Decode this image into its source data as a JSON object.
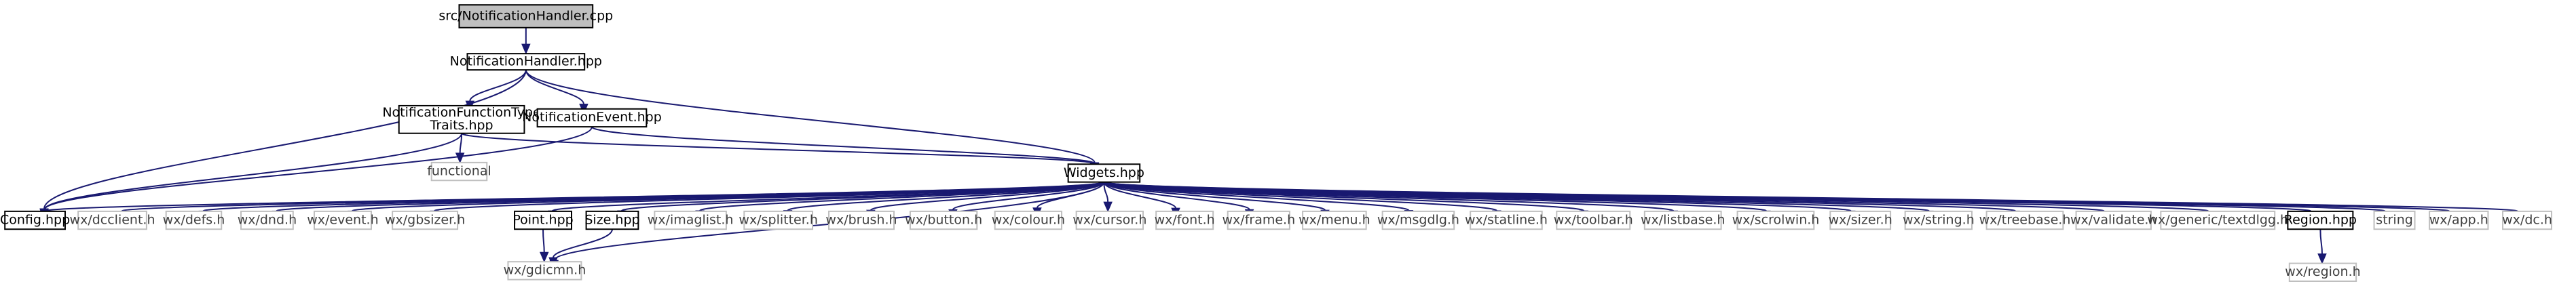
{
  "graph": {
    "edge_color": "#191970",
    "nodes": [
      {
        "id": "root",
        "label": "src/NotificationHandler.cpp",
        "kind": "root"
      },
      {
        "id": "nh",
        "label": "NotificationHandler.hpp",
        "kind": "doc"
      },
      {
        "id": "nftt",
        "label": "NotificationFunctionType",
        "label2": "Traits.hpp",
        "kind": "doc"
      },
      {
        "id": "ne",
        "label": "NotificationEvent.hpp",
        "kind": "doc"
      },
      {
        "id": "functional",
        "label": "functional",
        "kind": "ext"
      },
      {
        "id": "widgets",
        "label": "Widgets.hpp",
        "kind": "doc"
      },
      {
        "id": "config",
        "label": "Config.hpp",
        "kind": "doc"
      },
      {
        "id": "dcclient",
        "label": "wx/dcclient.h",
        "kind": "ext"
      },
      {
        "id": "defs",
        "label": "wx/defs.h",
        "kind": "ext"
      },
      {
        "id": "dnd",
        "label": "wx/dnd.h",
        "kind": "ext"
      },
      {
        "id": "event",
        "label": "wx/event.h",
        "kind": "ext"
      },
      {
        "id": "gbsizer",
        "label": "wx/gbsizer.h",
        "kind": "ext"
      },
      {
        "id": "point",
        "label": "Point.hpp",
        "kind": "doc"
      },
      {
        "id": "size",
        "label": "Size.hpp",
        "kind": "doc"
      },
      {
        "id": "imaglist",
        "label": "wx/imaglist.h",
        "kind": "ext"
      },
      {
        "id": "splitter",
        "label": "wx/splitter.h",
        "kind": "ext"
      },
      {
        "id": "brush",
        "label": "wx/brush.h",
        "kind": "ext"
      },
      {
        "id": "button",
        "label": "wx/button.h",
        "kind": "ext"
      },
      {
        "id": "colour",
        "label": "wx/colour.h",
        "kind": "ext"
      },
      {
        "id": "cursor",
        "label": "wx/cursor.h",
        "kind": "ext"
      },
      {
        "id": "font",
        "label": "wx/font.h",
        "kind": "ext"
      },
      {
        "id": "frame",
        "label": "wx/frame.h",
        "kind": "ext"
      },
      {
        "id": "menu",
        "label": "wx/menu.h",
        "kind": "ext"
      },
      {
        "id": "msgdlg",
        "label": "wx/msgdlg.h",
        "kind": "ext"
      },
      {
        "id": "statline",
        "label": "wx/statline.h",
        "kind": "ext"
      },
      {
        "id": "toolbar",
        "label": "wx/toolbar.h",
        "kind": "ext"
      },
      {
        "id": "listbase",
        "label": "wx/listbase.h",
        "kind": "ext"
      },
      {
        "id": "scrolwin",
        "label": "wx/scrolwin.h",
        "kind": "ext"
      },
      {
        "id": "sizer",
        "label": "wx/sizer.h",
        "kind": "ext"
      },
      {
        "id": "string",
        "label": "wx/string.h",
        "kind": "ext"
      },
      {
        "id": "treebase",
        "label": "wx/treebase.h",
        "kind": "ext"
      },
      {
        "id": "validate",
        "label": "wx/validate.h",
        "kind": "ext"
      },
      {
        "id": "textdlgg",
        "label": "wx/generic/textdlgg.h",
        "kind": "ext"
      },
      {
        "id": "region",
        "label": "Region.hpp",
        "kind": "doc"
      },
      {
        "id": "stdstring",
        "label": "string",
        "kind": "ext"
      },
      {
        "id": "app",
        "label": "wx/app.h",
        "kind": "ext"
      },
      {
        "id": "dc",
        "label": "wx/dc.h",
        "kind": "ext"
      },
      {
        "id": "gdicmn",
        "label": "wx/gdicmn.h",
        "kind": "ext"
      },
      {
        "id": "wxregion",
        "label": "wx/region.h",
        "kind": "ext"
      }
    ],
    "edges": [
      [
        "root",
        "nh"
      ],
      [
        "nh",
        "nftt"
      ],
      [
        "nh",
        "ne"
      ],
      [
        "nh",
        "config"
      ],
      [
        "nh",
        "widgets"
      ],
      [
        "nftt",
        "functional"
      ],
      [
        "nftt",
        "config"
      ],
      [
        "nftt",
        "widgets"
      ],
      [
        "ne",
        "config"
      ],
      [
        "ne",
        "widgets"
      ],
      [
        "widgets",
        "config"
      ],
      [
        "widgets",
        "dcclient"
      ],
      [
        "widgets",
        "defs"
      ],
      [
        "widgets",
        "dnd"
      ],
      [
        "widgets",
        "event"
      ],
      [
        "widgets",
        "gbsizer"
      ],
      [
        "widgets",
        "point"
      ],
      [
        "widgets",
        "size"
      ],
      [
        "widgets",
        "imaglist"
      ],
      [
        "widgets",
        "splitter"
      ],
      [
        "widgets",
        "brush"
      ],
      [
        "widgets",
        "button"
      ],
      [
        "widgets",
        "colour"
      ],
      [
        "widgets",
        "cursor"
      ],
      [
        "widgets",
        "font"
      ],
      [
        "widgets",
        "frame"
      ],
      [
        "widgets",
        "menu"
      ],
      [
        "widgets",
        "msgdlg"
      ],
      [
        "widgets",
        "statline"
      ],
      [
        "widgets",
        "toolbar"
      ],
      [
        "widgets",
        "listbase"
      ],
      [
        "widgets",
        "scrolwin"
      ],
      [
        "widgets",
        "sizer"
      ],
      [
        "widgets",
        "string"
      ],
      [
        "widgets",
        "treebase"
      ],
      [
        "widgets",
        "validate"
      ],
      [
        "widgets",
        "textdlgg"
      ],
      [
        "widgets",
        "region"
      ],
      [
        "widgets",
        "stdstring"
      ],
      [
        "widgets",
        "app"
      ],
      [
        "widgets",
        "dc"
      ],
      [
        "widgets",
        "gdicmn"
      ],
      [
        "point",
        "gdicmn"
      ],
      [
        "size",
        "gdicmn"
      ],
      [
        "region",
        "wxregion"
      ]
    ]
  }
}
